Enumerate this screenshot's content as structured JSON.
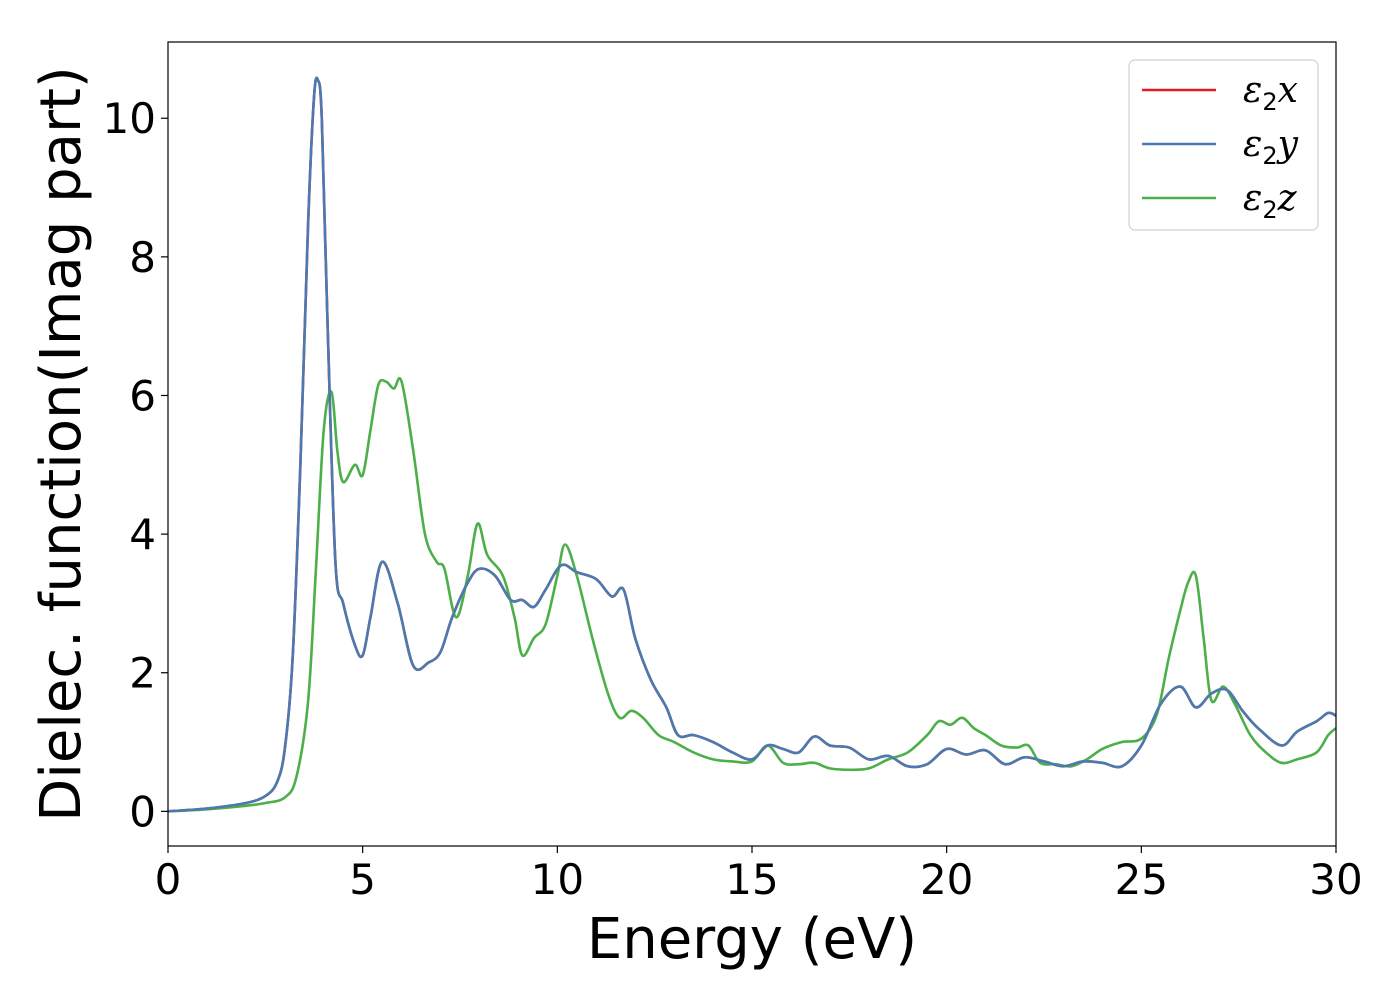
{
  "chart_data": {
    "type": "line",
    "title": "",
    "xlabel": "Energy (eV)",
    "ylabel": "Dielec. function(Imag part)",
    "xlim": [
      0,
      30
    ],
    "ylim": [
      -0.5,
      11.1
    ],
    "xticks": [
      0,
      5,
      10,
      15,
      20,
      25,
      30
    ],
    "yticks": [
      0,
      2,
      4,
      6,
      8,
      10
    ],
    "grid": false,
    "legend_position": "top-right",
    "series": [
      {
        "name": "ε2x",
        "color": "#e41a1c",
        "x": [
          0,
          1,
          2,
          2.5,
          2.8,
          3.0,
          3.2,
          3.4,
          3.6,
          3.75,
          3.85,
          3.95,
          4.1,
          4.3,
          4.5,
          4.8,
          5.0,
          5.2,
          5.5,
          5.9,
          6.3,
          6.7,
          7.0,
          7.3,
          7.7,
          8.0,
          8.4,
          8.8,
          9.1,
          9.4,
          9.7,
          10.1,
          10.5,
          11.0,
          11.4,
          11.7,
          12.0,
          12.4,
          12.8,
          13.1,
          13.5,
          14.0,
          14.5,
          15.0,
          15.4,
          15.8,
          16.2,
          16.6,
          17.0,
          17.5,
          18.0,
          18.5,
          19.0,
          19.5,
          20.0,
          20.5,
          21.0,
          21.5,
          22.0,
          22.5,
          23.0,
          23.5,
          24.0,
          24.5,
          25.0,
          25.5,
          26.0,
          26.4,
          26.8,
          27.2,
          27.6,
          28.0,
          28.6,
          29.0,
          29.5,
          29.8,
          30.0
        ],
        "values": [
          0.0,
          0.04,
          0.12,
          0.22,
          0.42,
          0.9,
          2.2,
          5.0,
          8.5,
          10.3,
          10.55,
          10.0,
          7.0,
          3.6,
          3.0,
          2.4,
          2.25,
          2.8,
          3.6,
          3.0,
          2.1,
          2.15,
          2.3,
          2.8,
          3.3,
          3.5,
          3.4,
          3.05,
          3.05,
          2.95,
          3.2,
          3.55,
          3.45,
          3.35,
          3.1,
          3.2,
          2.5,
          1.9,
          1.5,
          1.1,
          1.1,
          1.0,
          0.85,
          0.75,
          0.95,
          0.9,
          0.85,
          1.08,
          0.95,
          0.92,
          0.75,
          0.8,
          0.65,
          0.68,
          0.9,
          0.82,
          0.88,
          0.68,
          0.78,
          0.72,
          0.65,
          0.72,
          0.7,
          0.65,
          0.95,
          1.55,
          1.8,
          1.5,
          1.7,
          1.75,
          1.45,
          1.2,
          0.95,
          1.15,
          1.3,
          1.42,
          1.38
        ]
      },
      {
        "name": "ε2y",
        "color": "#4a7bb0",
        "x": [
          0,
          1,
          2,
          2.5,
          2.8,
          3.0,
          3.2,
          3.4,
          3.6,
          3.75,
          3.85,
          3.95,
          4.1,
          4.3,
          4.5,
          4.8,
          5.0,
          5.2,
          5.5,
          5.9,
          6.3,
          6.7,
          7.0,
          7.3,
          7.7,
          8.0,
          8.4,
          8.8,
          9.1,
          9.4,
          9.7,
          10.1,
          10.5,
          11.0,
          11.4,
          11.7,
          12.0,
          12.4,
          12.8,
          13.1,
          13.5,
          14.0,
          14.5,
          15.0,
          15.4,
          15.8,
          16.2,
          16.6,
          17.0,
          17.5,
          18.0,
          18.5,
          19.0,
          19.5,
          20.0,
          20.5,
          21.0,
          21.5,
          22.0,
          22.5,
          23.0,
          23.5,
          24.0,
          24.5,
          25.0,
          25.5,
          26.0,
          26.4,
          26.8,
          27.2,
          27.6,
          28.0,
          28.6,
          29.0,
          29.5,
          29.8,
          30.0
        ],
        "values": [
          0.0,
          0.04,
          0.12,
          0.22,
          0.42,
          0.9,
          2.2,
          5.0,
          8.5,
          10.3,
          10.55,
          10.0,
          7.0,
          3.6,
          3.0,
          2.4,
          2.25,
          2.8,
          3.6,
          3.0,
          2.1,
          2.15,
          2.3,
          2.8,
          3.3,
          3.5,
          3.4,
          3.05,
          3.05,
          2.95,
          3.2,
          3.55,
          3.45,
          3.35,
          3.1,
          3.2,
          2.5,
          1.9,
          1.5,
          1.1,
          1.1,
          1.0,
          0.85,
          0.75,
          0.95,
          0.9,
          0.85,
          1.08,
          0.95,
          0.92,
          0.75,
          0.8,
          0.65,
          0.68,
          0.9,
          0.82,
          0.88,
          0.68,
          0.78,
          0.72,
          0.65,
          0.72,
          0.7,
          0.65,
          0.95,
          1.55,
          1.8,
          1.5,
          1.7,
          1.75,
          1.45,
          1.2,
          0.95,
          1.15,
          1.3,
          1.42,
          1.38
        ]
      },
      {
        "name": "ε2z",
        "color": "#4daf4a",
        "x": [
          0,
          1,
          2,
          2.5,
          3.0,
          3.3,
          3.6,
          3.8,
          4.0,
          4.2,
          4.35,
          4.5,
          4.8,
          5.0,
          5.2,
          5.4,
          5.6,
          5.8,
          6.0,
          6.3,
          6.6,
          6.9,
          7.1,
          7.4,
          7.7,
          7.95,
          8.2,
          8.6,
          8.9,
          9.1,
          9.4,
          9.7,
          10.0,
          10.2,
          10.5,
          10.9,
          11.3,
          11.6,
          11.9,
          12.2,
          12.6,
          13.0,
          13.5,
          14.0,
          14.5,
          15.0,
          15.4,
          15.8,
          16.2,
          16.6,
          17.0,
          17.5,
          18.0,
          18.5,
          19.0,
          19.5,
          19.8,
          20.1,
          20.4,
          20.7,
          21.0,
          21.4,
          21.8,
          22.1,
          22.4,
          22.8,
          23.2,
          23.6,
          24.0,
          24.5,
          25.0,
          25.4,
          25.7,
          26.0,
          26.2,
          26.4,
          26.6,
          26.8,
          27.1,
          27.4,
          27.8,
          28.2,
          28.6,
          29.0,
          29.5,
          29.8,
          30.0
        ],
        "values": [
          0.0,
          0.03,
          0.08,
          0.12,
          0.2,
          0.5,
          1.6,
          3.5,
          5.5,
          6.05,
          5.2,
          4.75,
          5.0,
          4.85,
          5.5,
          6.15,
          6.2,
          6.1,
          6.2,
          5.2,
          4.0,
          3.6,
          3.5,
          2.8,
          3.4,
          4.15,
          3.7,
          3.4,
          2.8,
          2.25,
          2.5,
          2.7,
          3.4,
          3.85,
          3.4,
          2.5,
          1.7,
          1.35,
          1.45,
          1.35,
          1.1,
          1.0,
          0.85,
          0.75,
          0.72,
          0.72,
          0.95,
          0.7,
          0.68,
          0.7,
          0.62,
          0.6,
          0.62,
          0.75,
          0.85,
          1.1,
          1.3,
          1.25,
          1.35,
          1.2,
          1.1,
          0.95,
          0.92,
          0.95,
          0.7,
          0.68,
          0.65,
          0.75,
          0.9,
          1.0,
          1.05,
          1.4,
          2.2,
          2.9,
          3.3,
          3.4,
          2.5,
          1.6,
          1.8,
          1.55,
          1.1,
          0.85,
          0.7,
          0.75,
          0.85,
          1.1,
          1.2
        ]
      }
    ]
  }
}
